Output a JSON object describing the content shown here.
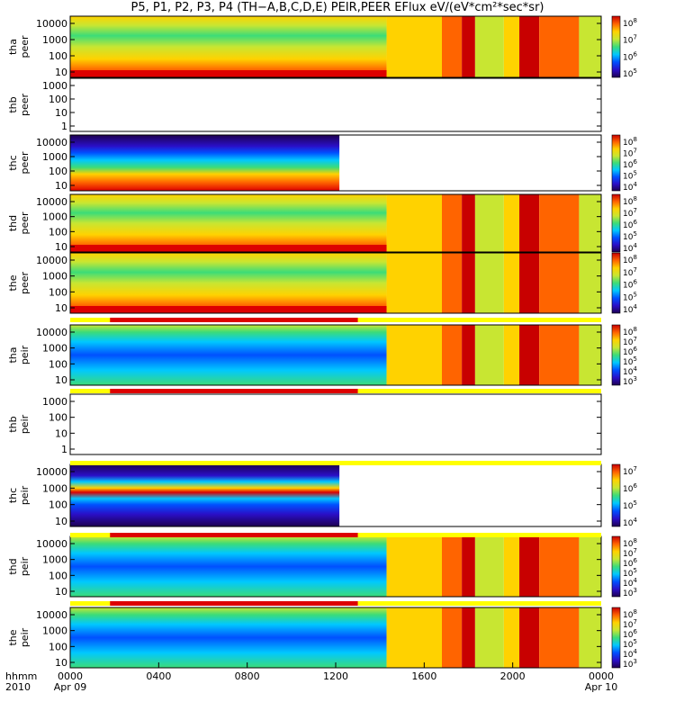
{
  "title": "P5, P1, P2, P3, P4 (TH−A,B,C,D,E) PEIR,PEER EFlux eV/(eV*cm²*sec*sr)",
  "x_axis": {
    "row_label_top": "hhmm",
    "row_label_bottom": "2010",
    "ticks": [
      "0000",
      "0400",
      "0800",
      "1200",
      "1600",
      "2000",
      "0000"
    ],
    "date_labels": [
      "Apr 09",
      "Apr 10"
    ]
  },
  "colors": {
    "spectrum": [
      "#1e0050",
      "#2a0fc8",
      "#0050ff",
      "#00c8ff",
      "#3cdc78",
      "#c8e632",
      "#ffd200",
      "#ff6400",
      "#c80000"
    ],
    "bar_red": "#dd0000",
    "bar_yellow": "#ffff00"
  },
  "chart_data": [
    {
      "type": "heatmap",
      "probe": "tha",
      "species": "peer",
      "ylabel": [
        "tha",
        "peer"
      ],
      "yticks": [
        "10",
        "100",
        "1000",
        "10000"
      ],
      "yscale": "log",
      "colorbar_ticks": [
        "10^8",
        "10^7",
        "10^6",
        "10^5"
      ],
      "regime": "electron_full"
    },
    {
      "type": "heatmap",
      "probe": "thb",
      "species": "peer",
      "ylabel": [
        "thb",
        "peer"
      ],
      "yticks": [
        "1",
        "10",
        "100",
        "1000"
      ],
      "yscale": "log",
      "colorbar_ticks": [],
      "regime": "empty"
    },
    {
      "type": "heatmap",
      "probe": "thc",
      "species": "peer",
      "ylabel": [
        "thc",
        "peer"
      ],
      "yticks": [
        "10",
        "100",
        "1000",
        "10000"
      ],
      "yscale": "log",
      "colorbar_ticks": [
        "10^8",
        "10^7",
        "10^6",
        "10^5",
        "10^4"
      ],
      "data_end_hhmm": "1210",
      "regime": "electron_band"
    },
    {
      "type": "heatmap",
      "probe": "thd",
      "species": "peer",
      "ylabel": [
        "thd",
        "peer"
      ],
      "yticks": [
        "10",
        "100",
        "1000",
        "10000"
      ],
      "yscale": "log",
      "colorbar_ticks": [
        "10^8",
        "10^7",
        "10^6",
        "10^5",
        "10^4"
      ],
      "regime": "electron_full"
    },
    {
      "type": "heatmap",
      "probe": "the",
      "species": "peer",
      "ylabel": [
        "the",
        "peer"
      ],
      "yticks": [
        "10",
        "100",
        "1000",
        "10000"
      ],
      "yscale": "log",
      "colorbar_ticks": [
        "10^8",
        "10^7",
        "10^6",
        "10^5",
        "10^4"
      ],
      "regime": "electron_full",
      "mode_bar": true
    },
    {
      "type": "heatmap",
      "probe": "tha",
      "species": "peir",
      "ylabel": [
        "tha",
        "peir"
      ],
      "yticks": [
        "10",
        "100",
        "1000",
        "10000"
      ],
      "yscale": "log",
      "colorbar_ticks": [
        "10^8",
        "10^7",
        "10^6",
        "10^5",
        "10^4",
        "10^3"
      ],
      "regime": "ion_full",
      "mode_bar": true
    },
    {
      "type": "heatmap",
      "probe": "thb",
      "species": "peir",
      "ylabel": [
        "thb",
        "peir"
      ],
      "yticks": [
        "1",
        "10",
        "100",
        "1000"
      ],
      "yscale": "log",
      "colorbar_ticks": [],
      "regime": "empty"
    },
    {
      "type": "heatmap",
      "probe": "thc",
      "species": "peir",
      "ylabel": [
        "thc",
        "peir"
      ],
      "yticks": [
        "10",
        "100",
        "1000",
        "10000"
      ],
      "yscale": "log",
      "colorbar_ticks": [
        "10^7",
        "10^6",
        "10^5",
        "10^4"
      ],
      "data_end_hhmm": "1210",
      "regime": "ion_band",
      "mode_bar": true
    },
    {
      "type": "heatmap",
      "probe": "thd",
      "species": "peir",
      "ylabel": [
        "thd",
        "peir"
      ],
      "yticks": [
        "10",
        "100",
        "1000",
        "10000"
      ],
      "yscale": "log",
      "colorbar_ticks": [
        "10^8",
        "10^7",
        "10^6",
        "10^5",
        "10^4",
        "10^3"
      ],
      "regime": "ion_full",
      "mode_bar": true
    },
    {
      "type": "heatmap",
      "probe": "the",
      "species": "peir",
      "ylabel": [
        "the",
        "peir"
      ],
      "yticks": [
        "10",
        "100",
        "1000",
        "10000"
      ],
      "yscale": "log",
      "colorbar_ticks": [
        "10^8",
        "10^7",
        "10^6",
        "10^5",
        "10^4",
        "10^3"
      ],
      "regime": "ion_full"
    }
  ]
}
